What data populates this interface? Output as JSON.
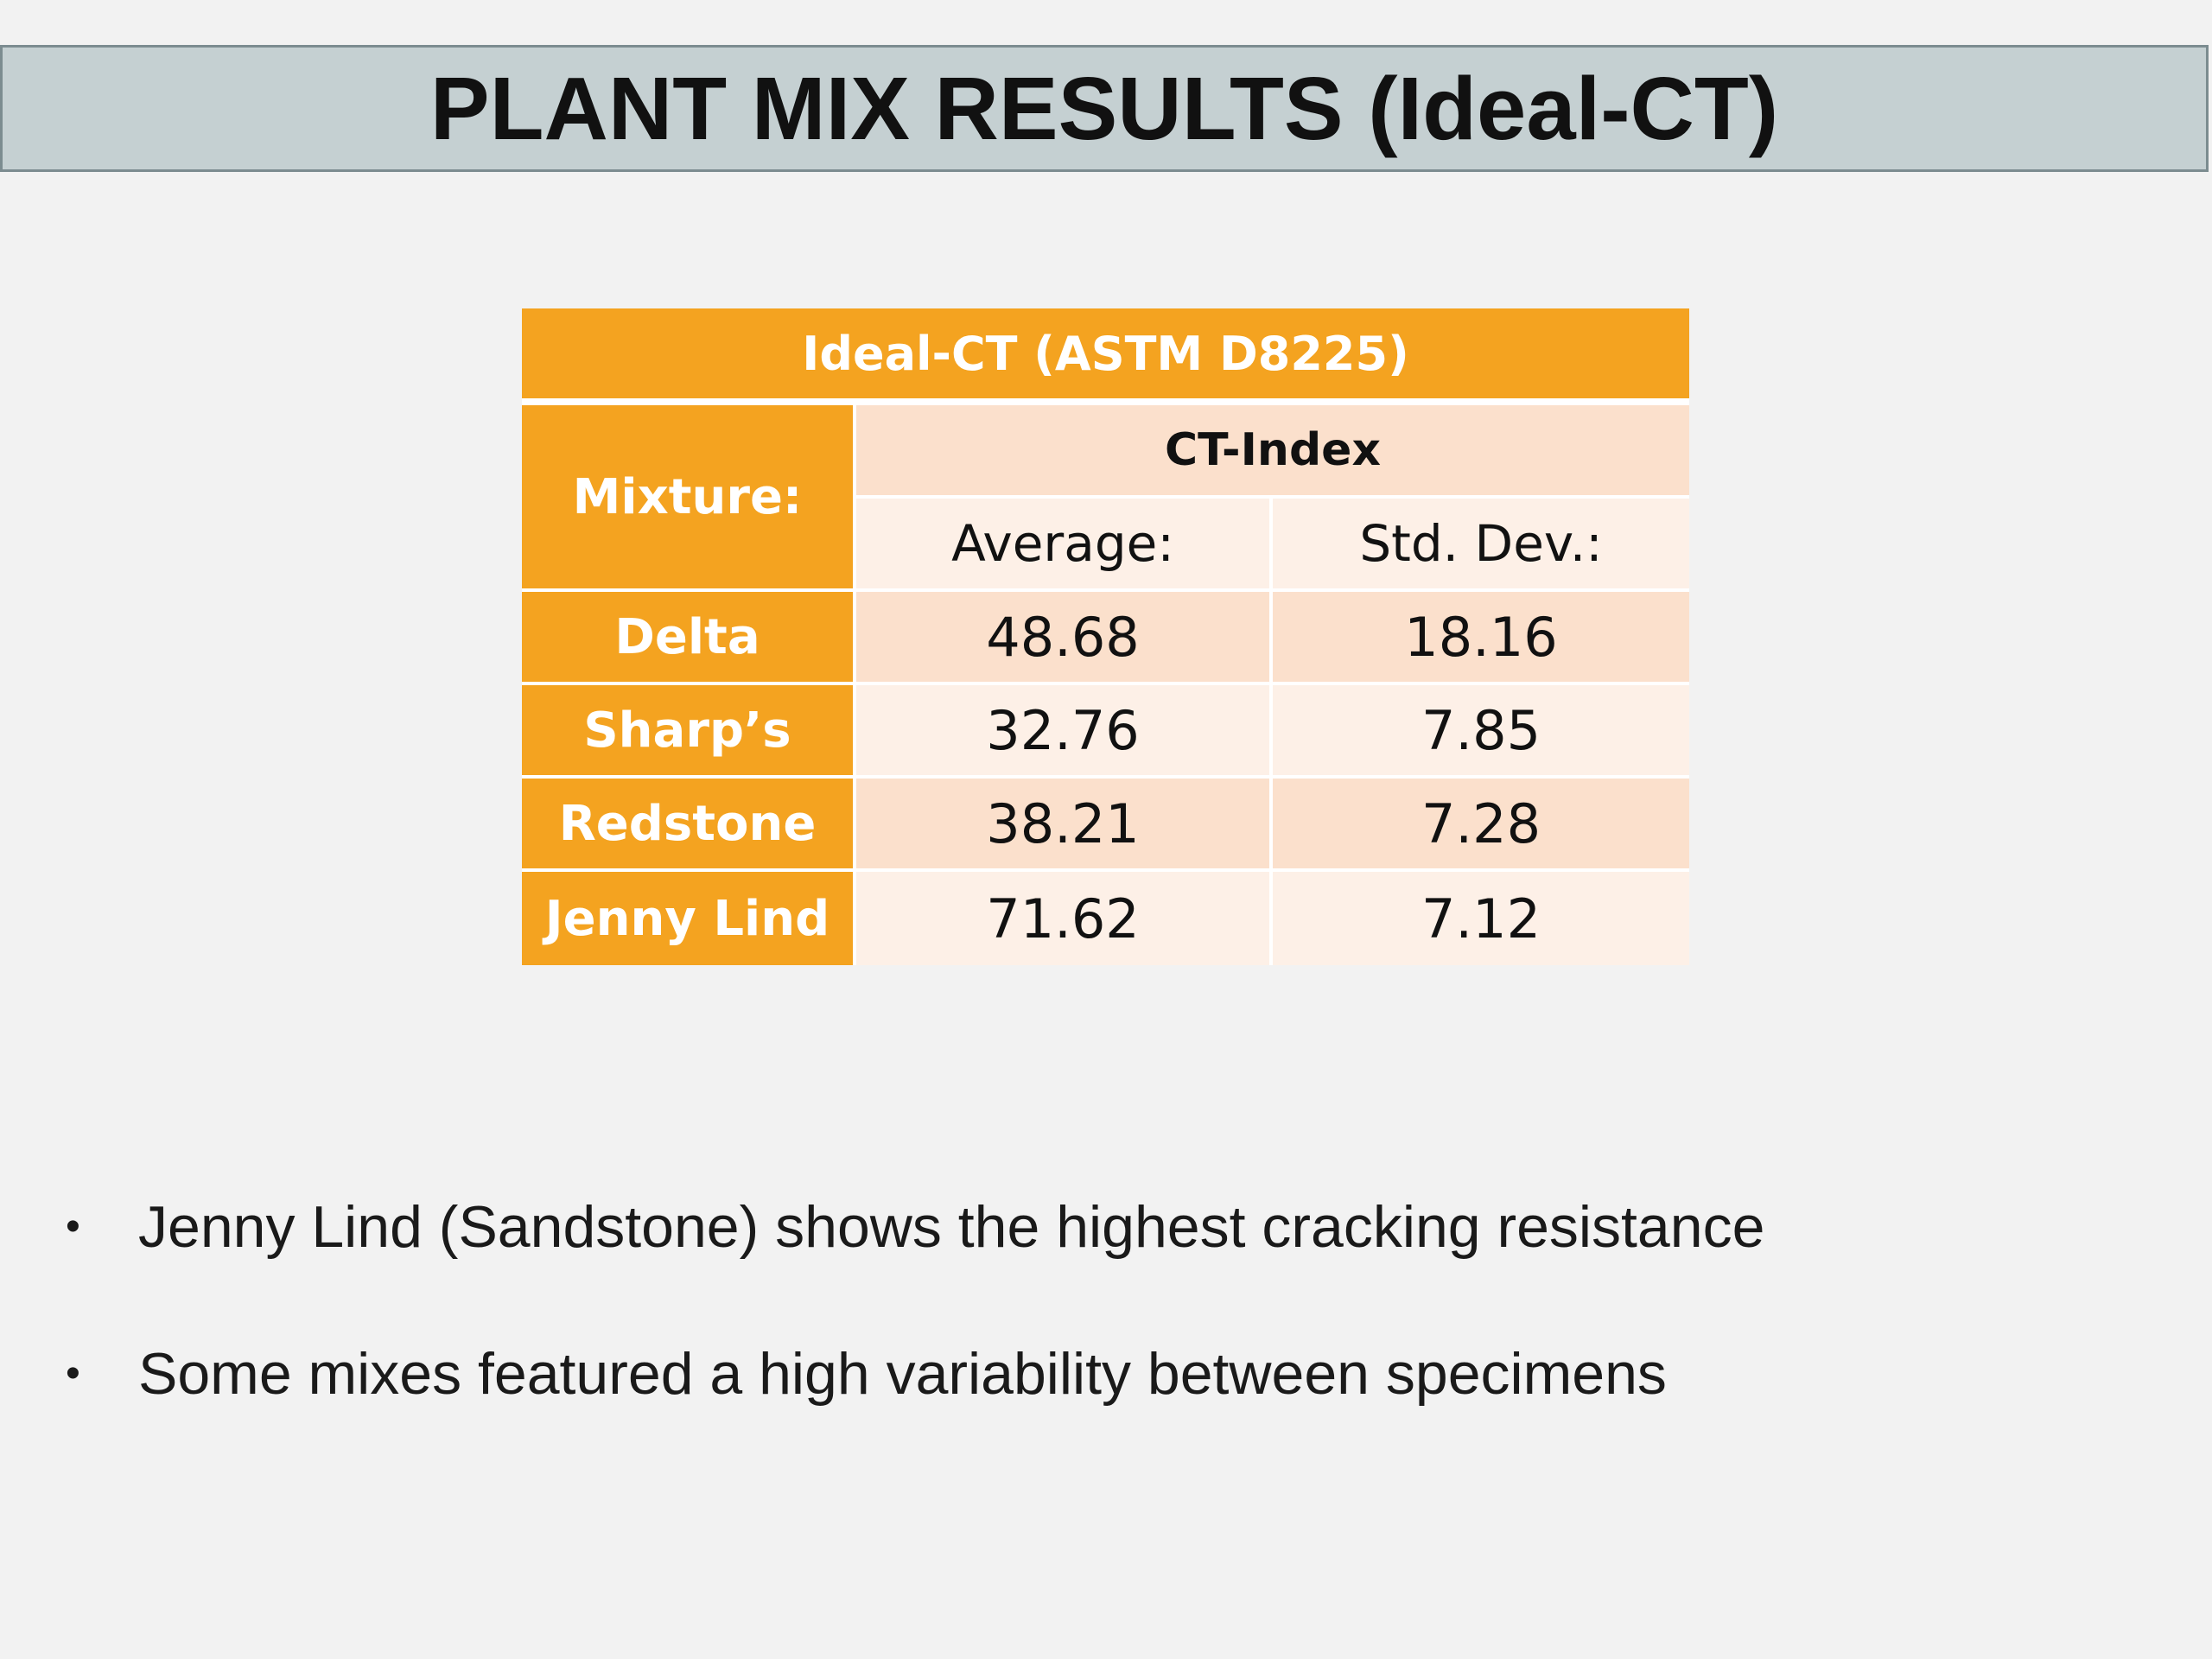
{
  "slide": {
    "title": "PLANT MIX RESULTS (Ideal-CT)"
  },
  "table": {
    "caption": "Ideal-CT (ASTM D8225)",
    "row_header_label": "Mixture:",
    "group_header": "CT-Index",
    "columns": [
      "Average:",
      "Std. Dev.:"
    ],
    "rows": [
      {
        "mixture": "Delta",
        "average": "48.68",
        "std_dev": "18.16"
      },
      {
        "mixture": "Sharp’s",
        "average": "32.76",
        "std_dev": "7.85"
      },
      {
        "mixture": "Redstone",
        "average": "38.21",
        "std_dev": "7.28"
      },
      {
        "mixture": "Jenny Lind",
        "average": "71.62",
        "std_dev": "7.12"
      }
    ],
    "colors": {
      "header_orange": "#f4a320",
      "row_dark": "#fbe0cc",
      "row_light": "#fdf0e7"
    }
  },
  "bullets": [
    "Jenny Lind (Sandstone) shows the highest cracking resistance",
    "Some mixes featured a high variability between specimens"
  ],
  "colors": {
    "title_bar": "#c5d0d2",
    "background": "#f2f2f2"
  }
}
